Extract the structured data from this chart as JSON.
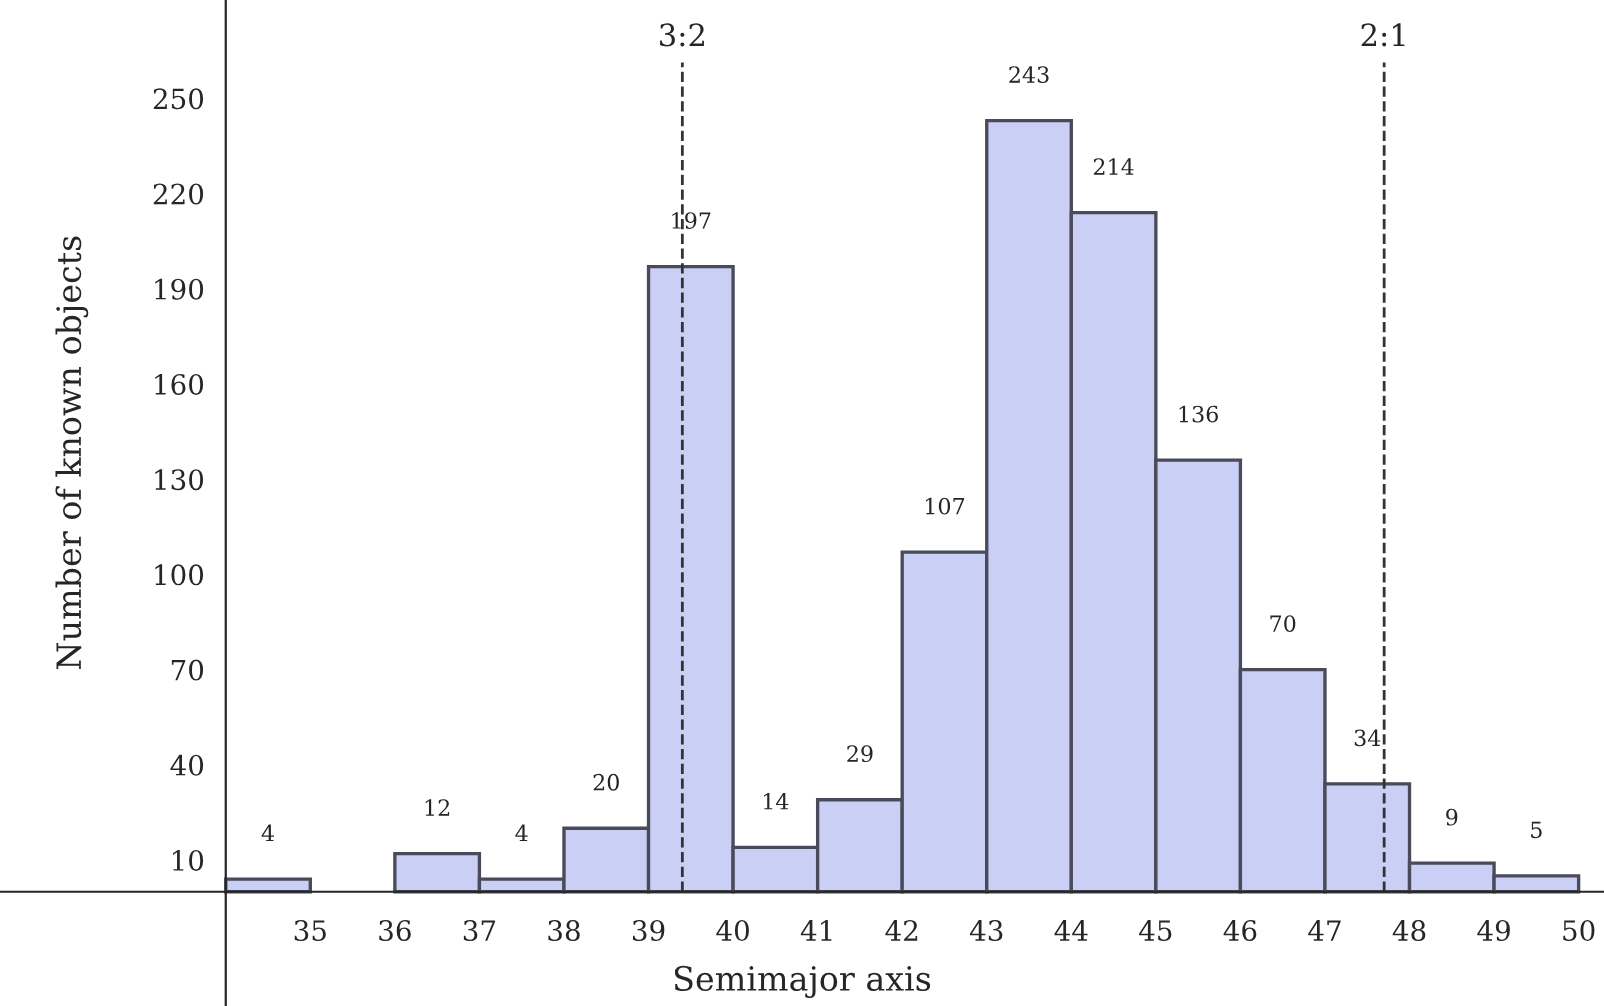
{
  "chart_data": {
    "type": "histogram",
    "xlabel": "Semimajor axis",
    "ylabel": "Number of known objects",
    "bins": [
      34,
      35,
      36,
      37,
      38,
      39,
      40,
      41,
      42,
      43,
      44,
      45,
      46,
      47,
      48,
      49,
      50
    ],
    "values": [
      4,
      0,
      12,
      4,
      20,
      197,
      14,
      29,
      107,
      243,
      214,
      136,
      70,
      34,
      9,
      5
    ],
    "value_labels": [
      "4",
      null,
      "12",
      "4",
      "20",
      "197",
      "14",
      "29",
      "107",
      "243",
      "214",
      "136",
      "70",
      "34",
      "9",
      "5"
    ],
    "color": "#c9cff5",
    "xlim": [
      31.33,
      50.3
    ],
    "ylim": [
      -36,
      281
    ],
    "xticks": [
      35,
      36,
      37,
      38,
      39,
      40,
      41,
      42,
      43,
      44,
      45,
      46,
      47,
      48,
      49,
      50
    ],
    "yticks": [
      10,
      40,
      70,
      100,
      130,
      160,
      190,
      220,
      250
    ],
    "ref_lines": [
      {
        "axis": "x",
        "value": 39.4,
        "line_style": "dashed"
      },
      {
        "axis": "x",
        "value": 47.7,
        "line_style": "dashed"
      }
    ],
    "annotations": [
      {
        "text": "3:2",
        "x": 39.4,
        "y": 261
      },
      {
        "text": "2:1",
        "x": 47.7,
        "y": 261
      }
    ],
    "grid": false,
    "legend": false
  }
}
